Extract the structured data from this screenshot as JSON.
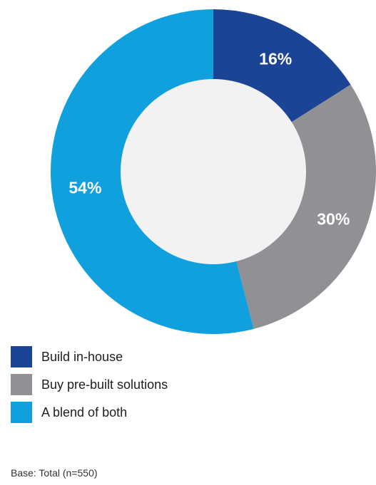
{
  "chart_data": {
    "type": "pie",
    "donut": true,
    "categories": [
      "Build in-house",
      "Buy pre-built solutions",
      "A blend of both"
    ],
    "values": [
      16,
      30,
      54
    ],
    "data_labels": [
      "16%",
      "30%",
      "54%"
    ],
    "colors": [
      "#1c4496",
      "#919195",
      "#0fa0dd"
    ],
    "hole_color": "#f3f2f2",
    "legend_position": "bottom-left"
  },
  "footnote": "Base: Total (n=550)"
}
